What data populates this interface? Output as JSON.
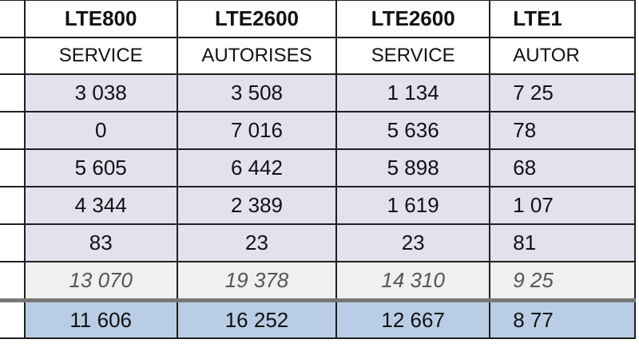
{
  "header_row1": [
    "LTE800",
    "LTE2600",
    "LTE2600",
    "LTE1"
  ],
  "header_row2": [
    "SERVICE",
    "AUTORISES",
    "SERVICE",
    "AUTOR"
  ],
  "rows": [
    [
      "3 038",
      "3 508",
      "1 134",
      "7 25"
    ],
    [
      "0",
      "7 016",
      "5 636",
      "78"
    ],
    [
      "5 605",
      "6 442",
      "5 898",
      "68"
    ],
    [
      "4 344",
      "2 389",
      "1 619",
      "1 07"
    ],
    [
      "83",
      "23",
      "23",
      "81"
    ]
  ],
  "total_row": [
    "13 070",
    "19 378",
    "14 310",
    "9 25"
  ],
  "summary_row": [
    "11 606",
    "16 252",
    "12 667",
    "8 77"
  ]
}
